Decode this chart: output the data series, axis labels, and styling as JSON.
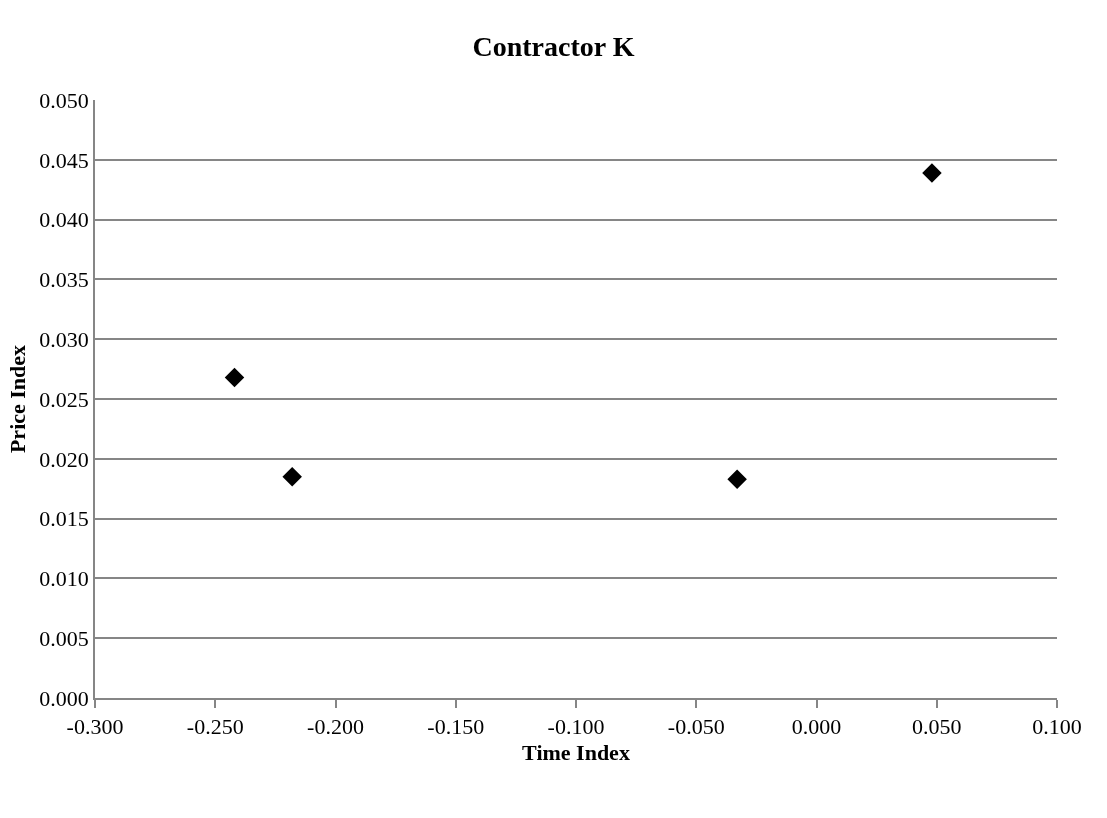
{
  "chart_data": {
    "type": "scatter",
    "title": "Contractor K",
    "xlabel": "Time Index",
    "ylabel": "Price Index",
    "x": [
      -0.242,
      -0.218,
      -0.033,
      0.048
    ],
    "series": [
      {
        "color": "#000000",
        "values": [
          0.0268,
          0.0185,
          0.0183,
          0.0439
        ]
      }
    ],
    "xlim": [
      -0.3,
      0.1
    ],
    "xticks": [
      {
        "value": -0.3,
        "label": "-0.300"
      },
      {
        "value": -0.25,
        "label": "-0.250"
      },
      {
        "value": -0.2,
        "label": "-0.200"
      },
      {
        "value": -0.15,
        "label": "-0.150"
      },
      {
        "value": -0.1,
        "label": "-0.100"
      },
      {
        "value": -0.05,
        "label": "-0.050"
      },
      {
        "value": 0,
        "label": "0.000"
      },
      {
        "value": 0.05,
        "label": "0.050"
      },
      {
        "value": 0.1,
        "label": "0.100"
      }
    ],
    "ylim": [
      0,
      0.05
    ],
    "yticks": [
      {
        "value": 0,
        "label": "0.000"
      },
      {
        "value": 0.005,
        "label": "0.005"
      },
      {
        "value": 0.01,
        "label": "0.010"
      },
      {
        "value": 0.015,
        "label": "0.015"
      },
      {
        "value": 0.02,
        "label": "0.020"
      },
      {
        "value": 0.025,
        "label": "0.025"
      },
      {
        "value": 0.03,
        "label": "0.030"
      },
      {
        "value": 0.035,
        "label": "0.035"
      },
      {
        "value": 0.04,
        "label": "0.040"
      },
      {
        "value": 0.045,
        "label": "0.045"
      },
      {
        "value": 0.05,
        "label": "0.050"
      }
    ],
    "grid": "y",
    "marker": "diamond"
  }
}
